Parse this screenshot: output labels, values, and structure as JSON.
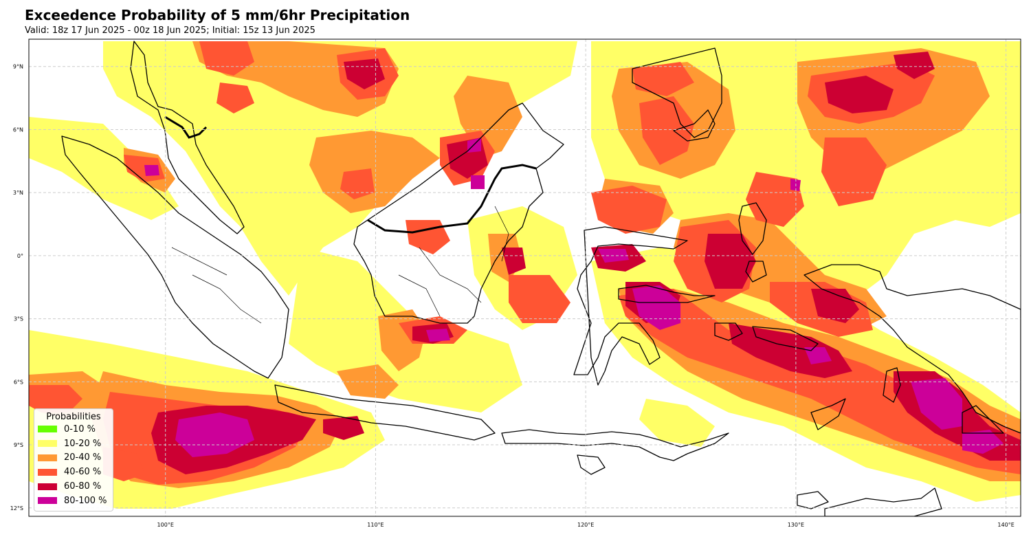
{
  "header": {
    "title": "Exceedence Probability of 5 mm/6hr Precipitation",
    "subtitle": "Valid: 18z 17 Jun 2025 - 00z 18 Jun 2025; Initial: 15z 13 Jun 2025"
  },
  "map": {
    "lon_range": [
      93.5,
      140.7
    ],
    "lat_range": [
      -12.4,
      10.3
    ],
    "lat_ticks": [
      "9°N",
      "6°N",
      "3°N",
      "0°",
      "3°S",
      "6°S",
      "9°S",
      "12°S"
    ],
    "lon_ticks": [
      "100°E",
      "110°E",
      "120°E",
      "130°E",
      "140°E"
    ],
    "gridlines": true,
    "colors": {
      "p0_10": "#66ff00",
      "p10_20": "#ffff66",
      "p20_40": "#ff9933",
      "p40_60": "#ff5533",
      "p60_80": "#cc0033",
      "p80_100": "#cc0099"
    }
  },
  "legend": {
    "title": "Probabilities",
    "items": [
      {
        "label": "0-10 %",
        "color": "#66ff00"
      },
      {
        "label": "10-20 %",
        "color": "#ffff66"
      },
      {
        "label": "20-40 %",
        "color": "#ff9933"
      },
      {
        "label": "40-60 %",
        "color": "#ff5533"
      },
      {
        "label": "60-80 %",
        "color": "#cc0033"
      },
      {
        "label": "80-100 %",
        "color": "#cc0099"
      }
    ]
  }
}
